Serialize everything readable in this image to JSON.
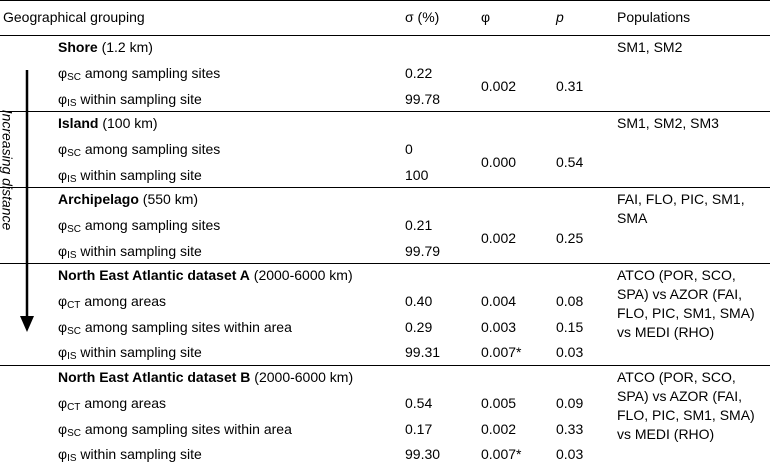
{
  "header": [
    "Geographical grouping",
    "σ (%)",
    "φ",
    "p",
    "Populations"
  ],
  "side_label": "Increasing distance",
  "sections": [
    {
      "name": "Shore",
      "distance": "(1.2 km)",
      "populations": "SM1, SM2",
      "phi": "0.002",
      "p": "0.31",
      "rows": [
        {
          "symbol": "φ",
          "subscript": "SC",
          "label": "among sampling sites",
          "sigma": "0.22"
        },
        {
          "symbol": "φ",
          "subscript": "IS",
          "label": "within sampling site",
          "sigma": "99.78"
        }
      ]
    },
    {
      "name": "Island",
      "distance": "(100 km)",
      "populations": "SM1, SM2, SM3",
      "phi": "0.000",
      "p": "0.54",
      "rows": [
        {
          "symbol": "φ",
          "subscript": "SC",
          "label": "among sampling sites",
          "sigma": "0"
        },
        {
          "symbol": "φ",
          "subscript": "IS",
          "label": "within sampling site",
          "sigma": "100"
        }
      ]
    },
    {
      "name": "Archipelago",
      "distance": "(550 km)",
      "populations": "FAI, FLO, PIC, SM1, SMA",
      "phi": "0.002",
      "p": "0.25",
      "rows": [
        {
          "symbol": "φ",
          "subscript": "SC",
          "label": "among sampling sites",
          "sigma": "0.21"
        },
        {
          "symbol": "φ",
          "subscript": "IS",
          "label": "within sampling site",
          "sigma": "99.79"
        }
      ]
    },
    {
      "name": "North East Atlantic dataset A",
      "distance": "(2000-6000 km)",
      "populations": "ATCO (POR, SCO, SPA) vs AZOR (FAI, FLO, PIC, SM1, SMA) vs MEDI (RHO)",
      "rows": [
        {
          "symbol": "φ",
          "subscript": "CT",
          "label": "among areas",
          "sigma": "0.40",
          "phi": "0.004",
          "p": "0.08"
        },
        {
          "symbol": "φ",
          "subscript": "SC",
          "label": "among sampling sites within area",
          "sigma": "0.29",
          "phi": "0.003",
          "p": "0.15"
        },
        {
          "symbol": "φ",
          "subscript": "IS",
          "label": "within sampling site",
          "sigma": "99.31",
          "phi": "0.007*",
          "p": "0.03"
        }
      ]
    },
    {
      "name": "North East Atlantic dataset B",
      "distance": "(2000-6000 km)",
      "populations": "ATCO (POR, SCO, SPA) vs AZOR (FAI, FLO, PIC, SM1, SMA) vs MEDI (RHO)",
      "rows": [
        {
          "symbol": "φ",
          "subscript": "CT",
          "label": "among areas",
          "sigma": "0.54",
          "phi": "0.005",
          "p": "0.09"
        },
        {
          "symbol": "φ",
          "subscript": "SC",
          "label": "among sampling sites within area",
          "sigma": "0.17",
          "phi": "0.002",
          "p": "0.33"
        },
        {
          "symbol": "φ",
          "subscript": "IS",
          "label": "within sampling site",
          "sigma": "99.30",
          "phi": "0.007*",
          "p": "0.03"
        }
      ]
    }
  ]
}
